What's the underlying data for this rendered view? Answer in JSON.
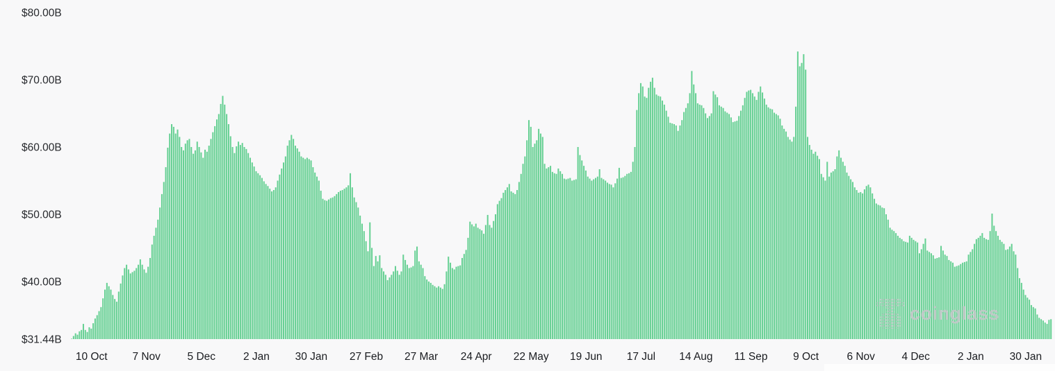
{
  "watermark": {
    "text": "coinglass",
    "logo": "coinglass-dotted-logo",
    "color": "#c7c7cb"
  },
  "chart_data": {
    "type": "bar",
    "ylabel": "",
    "xlabel": "",
    "grid": false,
    "legend": "none",
    "bar_color": "#66d093",
    "background_color": "#f8f8f9",
    "y_min": 31.44,
    "y_max": 80,
    "y_ticks": [
      {
        "label": "$80.00B",
        "value": 80
      },
      {
        "label": "$70.00B",
        "value": 70
      },
      {
        "label": "$60.00B",
        "value": 60
      },
      {
        "label": "$50.00B",
        "value": 50
      },
      {
        "label": "$40.00B",
        "value": 40
      },
      {
        "label": "$31.44B",
        "value": 31.44
      }
    ],
    "x_ticks": [
      {
        "label": "10 Oct",
        "day": 10
      },
      {
        "label": "7 Nov",
        "day": 38
      },
      {
        "label": "5 Dec",
        "day": 66
      },
      {
        "label": "2 Jan",
        "day": 94
      },
      {
        "label": "30 Jan",
        "day": 122
      },
      {
        "label": "27 Feb",
        "day": 150
      },
      {
        "label": "27 Mar",
        "day": 178
      },
      {
        "label": "24 Apr",
        "day": 206
      },
      {
        "label": "22 May",
        "day": 234
      },
      {
        "label": "19 Jun",
        "day": 262
      },
      {
        "label": "17 Jul",
        "day": 290
      },
      {
        "label": "14 Aug",
        "day": 318
      },
      {
        "label": "11 Sep",
        "day": 346
      },
      {
        "label": "9 Oct",
        "day": 374
      },
      {
        "label": "6 Nov",
        "day": 402
      },
      {
        "label": "4 Dec",
        "day": 430
      },
      {
        "label": "2 Jan",
        "day": 458
      },
      {
        "label": "30 Jan",
        "day": 486
      }
    ],
    "unit": "USD billions",
    "values": [
      31.5,
      31.9,
      32.3,
      32.1,
      32.6,
      32.8,
      33.7,
      32.8,
      32.5,
      33.2,
      33.0,
      33.8,
      34.5,
      35.0,
      35.6,
      36.2,
      37.5,
      38.8,
      39.8,
      39.3,
      38.8,
      38.0,
      37.4,
      37.0,
      38.5,
      39.7,
      40.9,
      42.0,
      42.5,
      41.8,
      41.2,
      41.4,
      41.6,
      42.0,
      42.5,
      43.3,
      42.5,
      41.8,
      41.3,
      42.2,
      43.5,
      45.5,
      46.8,
      48.0,
      49.2,
      51.0,
      53.0,
      54.8,
      57.0,
      59.9,
      62.0,
      63.4,
      63.0,
      62.0,
      62.6,
      61.5,
      60.0,
      59.5,
      60.5,
      61.0,
      61.2,
      60.0,
      59.0,
      59.5,
      60.8,
      60.0,
      59.2,
      58.4,
      59.6,
      59.3,
      60.2,
      61.2,
      62.2,
      63.1,
      64.1,
      64.9,
      66.4,
      67.6,
      66.3,
      64.9,
      63.4,
      61.6,
      60.0,
      59.1,
      60.1,
      60.8,
      60.3,
      60.6,
      60.0,
      59.7,
      59.1,
      58.4,
      57.7,
      57.1,
      56.4,
      56.1,
      55.8,
      55.4,
      54.9,
      54.5,
      54.2,
      53.8,
      53.4,
      53.6,
      54.0,
      55.0,
      55.9,
      56.8,
      57.7,
      58.6,
      60.2,
      61.0,
      61.8,
      61.2,
      60.2,
      59.8,
      59.3,
      58.6,
      58.4,
      58.2,
      58.4,
      58.2,
      58.0,
      57.0,
      56.2,
      55.6,
      55.0,
      53.5,
      52.3,
      52.1,
      52.0,
      52.2,
      52.4,
      52.5,
      52.7,
      53.0,
      53.3,
      53.5,
      53.6,
      53.8,
      54.0,
      54.3,
      56.1,
      54.0,
      52.5,
      51.8,
      51.0,
      49.8,
      48.6,
      47.5,
      46.0,
      44.5,
      48.8,
      45.0,
      42.3,
      43.8,
      43.0,
      43.9,
      42.0,
      41.5,
      41.0,
      40.2,
      40.6,
      41.0,
      41.5,
      42.3,
      41.6,
      41.0,
      41.5,
      44.0,
      43.2,
      42.5,
      42.0,
      42.1,
      42.3,
      44.6,
      45.2,
      43.0,
      42.5,
      42.0,
      40.8,
      40.3,
      40.0,
      39.8,
      39.5,
      39.3,
      39.1,
      39.3,
      39.1,
      38.9,
      39.6,
      41.5,
      43.7,
      42.8,
      42.0,
      41.8,
      42.2,
      42.3,
      42.4,
      43.5,
      44.1,
      44.7,
      46.5,
      48.9,
      48.5,
      48.2,
      48.6,
      48.0,
      47.8,
      47.6,
      47.1,
      48.4,
      49.9,
      48.4,
      48.0,
      49.0,
      50.0,
      51.5,
      52.0,
      52.4,
      53.2,
      53.6,
      54.0,
      54.5,
      53.4,
      53.2,
      53.0,
      53.6,
      54.8,
      56.0,
      57.5,
      58.6,
      61.0,
      64.0,
      63.0,
      60.0,
      60.5,
      61.0,
      62.7,
      62.0,
      61.5,
      57.5,
      56.8,
      57.0,
      57.2,
      56.3,
      56.1,
      56.0,
      56.8,
      56.4,
      56.0,
      55.3,
      55.2,
      55.3,
      55.4,
      55.0,
      55.1,
      55.2,
      60.0,
      58.8,
      58.0,
      57.2,
      56.5,
      55.6,
      55.3,
      55.0,
      55.2,
      55.4,
      55.6,
      56.7,
      55.4,
      55.2,
      55.0,
      54.7,
      54.5,
      54.4,
      54.0,
      54.6,
      55.3,
      56.9,
      55.4,
      55.5,
      55.7,
      56.0,
      56.1,
      56.3,
      57.8,
      60.0,
      65.5,
      68.0,
      69.5,
      69.0,
      67.5,
      67.3,
      68.8,
      69.7,
      70.3,
      68.8,
      67.8,
      67.6,
      67.5,
      66.9,
      66.3,
      65.4,
      64.5,
      63.6,
      63.5,
      63.4,
      63.2,
      62.4,
      63.2,
      64.0,
      65.2,
      65.8,
      66.5,
      68.0,
      71.3,
      69.3,
      68.0,
      66.5,
      66.3,
      66.2,
      65.8,
      65.0,
      64.3,
      64.6,
      65.0,
      68.3,
      67.8,
      67.4,
      66.2,
      66.0,
      65.8,
      65.3,
      65.1,
      64.9,
      64.4,
      63.7,
      63.8,
      63.9,
      64.6,
      65.4,
      66.2,
      67.3,
      68.2,
      68.4,
      68.5,
      68.0,
      67.5,
      67.0,
      68.2,
      69.0,
      68.1,
      67.2,
      66.3,
      65.9,
      65.7,
      65.6,
      65.1,
      64.9,
      64.7,
      64.2,
      63.2,
      62.7,
      62.3,
      61.5,
      61.1,
      60.8,
      61.5,
      66.0,
      74.2,
      72.0,
      72.5,
      73.8,
      71.5,
      61.5,
      60.3,
      59.6,
      59.0,
      59.3,
      58.7,
      58.2,
      56.0,
      55.5,
      55.0,
      57.8,
      55.6,
      56.2,
      56.4,
      56.7,
      58.6,
      59.5,
      58.4,
      57.8,
      57.2,
      56.2,
      55.7,
      55.2,
      54.8,
      54.0,
      53.6,
      53.2,
      53.3,
      53.1,
      53.7,
      54.2,
      54.4,
      54.0,
      53.1,
      52.3,
      51.6,
      51.4,
      51.3,
      51.0,
      50.9,
      50.0,
      49.2,
      48.0,
      47.7,
      47.5,
      47.2,
      46.8,
      46.5,
      46.3,
      46.0,
      45.9,
      45.8,
      46.8,
      46.5,
      46.2,
      46.0,
      45.8,
      44.2,
      44.8,
      45.6,
      46.4,
      44.6,
      44.4,
      44.2,
      43.9,
      43.4,
      43.5,
      43.6,
      45.3,
      44.6,
      44.0,
      43.8,
      43.2,
      43.0,
      42.8,
      42.2,
      42.3,
      42.4,
      42.6,
      42.8,
      42.9,
      43.0,
      44.0,
      44.4,
      44.8,
      45.6,
      46.3,
      46.5,
      46.8,
      47.2,
      46.5,
      46.3,
      46.2,
      47.5,
      50.1,
      48.3,
      47.5,
      46.8,
      46.2,
      45.9,
      45.6,
      44.7,
      44.8,
      45.2,
      45.6,
      44.5,
      44.0,
      42.0,
      40.5,
      39.8,
      38.8,
      38.0,
      37.6,
      37.3,
      36.5,
      36.2,
      36.0,
      35.1,
      34.6,
      34.4,
      34.2,
      33.9,
      33.7,
      34.3,
      34.4
    ]
  }
}
